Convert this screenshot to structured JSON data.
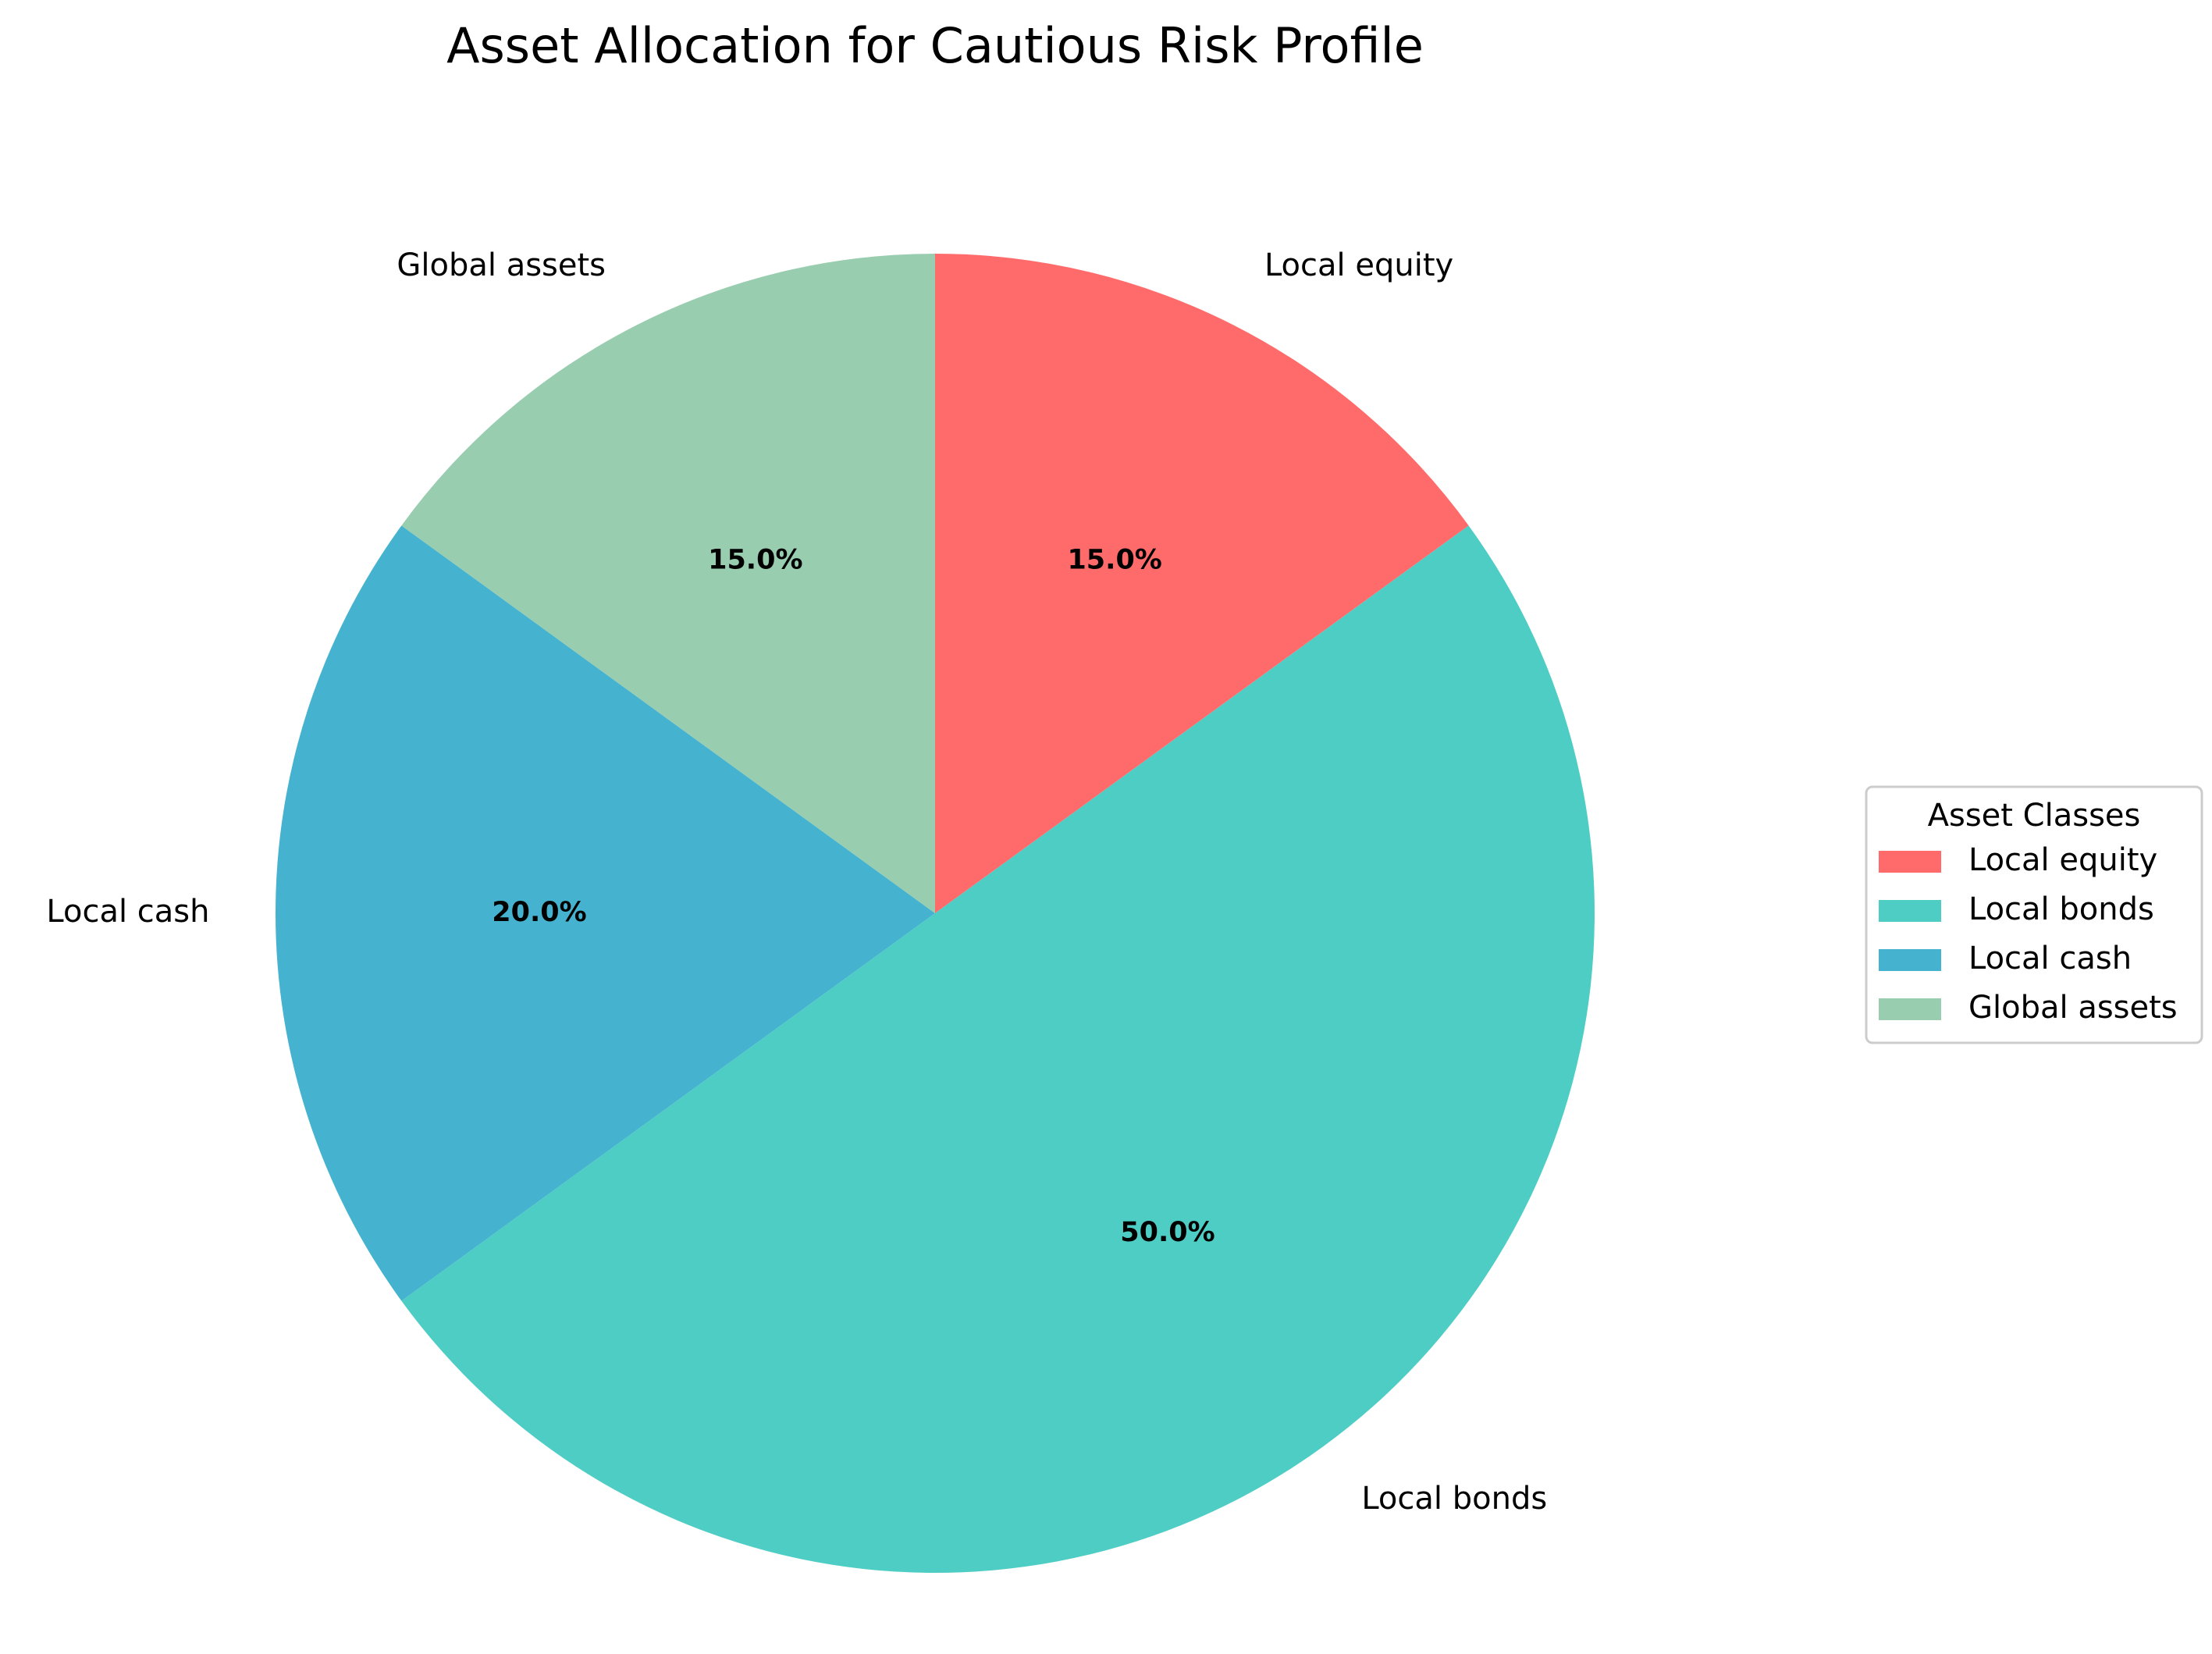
{
  "chart_data": {
    "type": "pie",
    "title": "Asset Allocation for Cautious Risk Profile",
    "start_angle_deg": 90,
    "direction": "clockwise",
    "slices": [
      {
        "label": "Local equity",
        "value": 15.0,
        "pct_label": "15.0%",
        "color": "#FF6B6B"
      },
      {
        "label": "Local bonds",
        "value": 50.0,
        "pct_label": "50.0%",
        "color": "#4ECDC4"
      },
      {
        "label": "Local cash",
        "value": 20.0,
        "pct_label": "20.0%",
        "color": "#45B3CF"
      },
      {
        "label": "Global assets",
        "value": 15.0,
        "pct_label": "15.0%",
        "color": "#98CDB0"
      }
    ],
    "legend": {
      "title": "Asset Classes",
      "position": "right",
      "entries": [
        "Local equity",
        "Local bonds",
        "Local cash",
        "Global assets"
      ]
    }
  }
}
